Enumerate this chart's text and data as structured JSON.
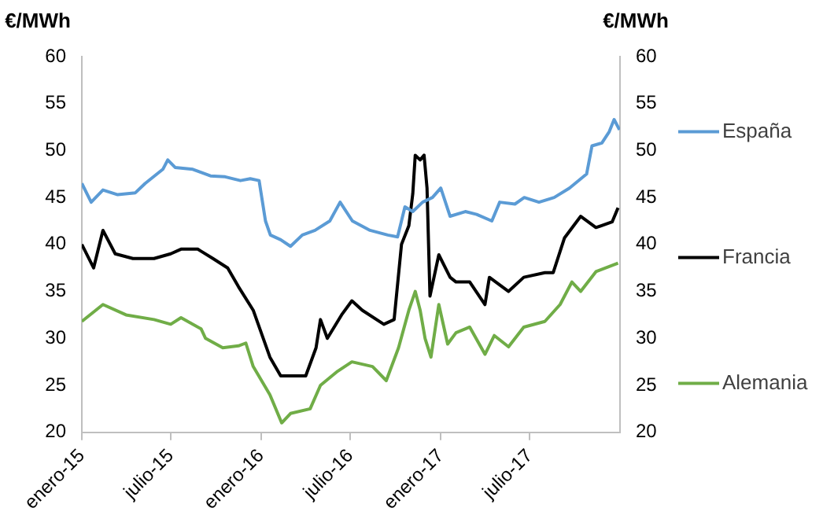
{
  "chart_data": {
    "type": "line",
    "ylabel": "€/MWh",
    "y2label": "€/MWh",
    "xlim": [
      "2015-01-01",
      "2018-01-01"
    ],
    "xticks": [
      {
        "value": "2015-01",
        "label": "enero-15"
      },
      {
        "value": "2015-07",
        "label": "julio-15"
      },
      {
        "value": "2016-01",
        "label": "enero-16"
      },
      {
        "value": "2016-07",
        "label": "julio-16"
      },
      {
        "value": "2017-01",
        "label": "enero-17"
      },
      {
        "value": "2017-07",
        "label": "julio-17"
      }
    ],
    "ylim": [
      20,
      60
    ],
    "yticks": [
      20,
      25,
      30,
      35,
      40,
      45,
      50,
      55,
      60
    ],
    "y2lim": [
      20,
      60
    ],
    "y2ticks": [
      20,
      25,
      30,
      35,
      40,
      45,
      50,
      55,
      60
    ],
    "grid": false,
    "legend": "right",
    "marker": "none",
    "line_style": "solid",
    "series": [
      {
        "name": "España",
        "color": "#5b9bd5",
        "x": [
          "2015-01-01",
          "2015-01-20",
          "2015-02-13",
          "2015-03-15",
          "2015-04-20",
          "2015-05-10",
          "2015-06-15",
          "2015-06-25",
          "2015-07-10",
          "2015-08-15",
          "2015-09-20",
          "2015-10-20",
          "2015-11-20",
          "2015-12-10",
          "2015-12-28",
          "2016-01-10",
          "2016-01-20",
          "2016-02-10",
          "2016-03-01",
          "2016-03-25",
          "2016-04-20",
          "2016-05-20",
          "2016-06-10",
          "2016-07-05",
          "2016-08-10",
          "2016-09-15",
          "2016-10-05",
          "2016-10-20",
          "2016-11-05",
          "2016-11-25",
          "2016-12-15",
          "2017-01-01",
          "2017-01-20",
          "2017-02-20",
          "2017-03-15",
          "2017-04-15",
          "2017-05-01",
          "2017-06-01",
          "2017-06-20",
          "2017-07-20",
          "2017-08-20",
          "2017-09-20",
          "2017-10-25",
          "2017-11-05",
          "2017-11-25",
          "2017-12-10",
          "2017-12-20",
          "2017-12-31"
        ],
        "values": [
          46.5,
          44.5,
          45.8,
          45.3,
          45.5,
          46.5,
          48,
          49,
          48.2,
          48,
          47.3,
          47.2,
          46.8,
          47,
          46.8,
          42.5,
          41,
          40.5,
          39.8,
          41,
          41.5,
          42.5,
          44.5,
          42.5,
          41.5,
          41,
          40.8,
          44,
          43.5,
          44.5,
          45,
          46,
          43,
          43.5,
          43.2,
          42.5,
          44.5,
          44.3,
          45,
          44.5,
          45,
          46,
          47.5,
          50.5,
          50.8,
          52,
          53.3,
          52.2
        ]
      },
      {
        "name": "Francia",
        "color": "#000000",
        "x": [
          "2015-01-01",
          "2015-01-25",
          "2015-02-13",
          "2015-03-10",
          "2015-04-15",
          "2015-05-28",
          "2015-07-01",
          "2015-07-22",
          "2015-08-25",
          "2015-09-25",
          "2015-10-25",
          "2015-11-16",
          "2015-12-16",
          "2016-01-19",
          "2016-02-10",
          "2016-03-15",
          "2016-04-01",
          "2016-04-22",
          "2016-05-01",
          "2016-05-15",
          "2016-06-13",
          "2016-07-04",
          "2016-07-25",
          "2016-09-07",
          "2016-09-28",
          "2016-10-13",
          "2016-10-28",
          "2016-11-05",
          "2016-11-10",
          "2016-11-20",
          "2016-11-28",
          "2016-12-04",
          "2016-12-10",
          "2016-12-28",
          "2017-01-20",
          "2017-02-01",
          "2017-03-01",
          "2017-04-01",
          "2017-04-10",
          "2017-05-19",
          "2017-06-19",
          "2017-08-01",
          "2017-08-18",
          "2017-09-10",
          "2017-10-13",
          "2017-11-13",
          "2017-12-16",
          "2017-12-28"
        ],
        "values": [
          40,
          37.5,
          41.5,
          39,
          38.5,
          38.5,
          39,
          39.5,
          39.5,
          38.5,
          37.5,
          35.5,
          33,
          28,
          26,
          26,
          26,
          29,
          32,
          30,
          32.5,
          34,
          33,
          31.5,
          32,
          40,
          42,
          45.4,
          49.5,
          49,
          49.5,
          46,
          34.5,
          38.9,
          36.5,
          36,
          36,
          33.6,
          36.5,
          35,
          36.5,
          37,
          37,
          40.7,
          43,
          41.8,
          42.4,
          43.9
        ]
      },
      {
        "name": "Alemania",
        "color": "#70ad47",
        "x": [
          "2015-01-01",
          "2015-02-13",
          "2015-04-01",
          "2015-05-28",
          "2015-07-01",
          "2015-07-22",
          "2015-09-01",
          "2015-09-10",
          "2015-10-15",
          "2015-11-16",
          "2015-12-01",
          "2015-12-16",
          "2016-01-19",
          "2016-02-12",
          "2016-03-01",
          "2016-04-10",
          "2016-05-01",
          "2016-06-05",
          "2016-07-04",
          "2016-08-15",
          "2016-09-12",
          "2016-10-07",
          "2016-10-28",
          "2016-11-10",
          "2016-11-20",
          "2016-11-30",
          "2016-12-12",
          "2016-12-28",
          "2017-01-15",
          "2017-02-01",
          "2017-03-01",
          "2017-04-01",
          "2017-04-20",
          "2017-05-19",
          "2017-06-19",
          "2017-08-01",
          "2017-09-01",
          "2017-09-25",
          "2017-10-13",
          "2017-11-13",
          "2017-12-28"
        ],
        "values": [
          31.8,
          33.6,
          32.5,
          32,
          31.5,
          32.2,
          31,
          30,
          29,
          29.2,
          29.5,
          27,
          24,
          21,
          22,
          22.5,
          25,
          26.5,
          27.5,
          27,
          25.5,
          29,
          33,
          35,
          33,
          30,
          28,
          33.6,
          29.4,
          30.6,
          31.2,
          28.3,
          30.3,
          29.1,
          31.2,
          31.8,
          33.6,
          36,
          35,
          37.1,
          38
        ]
      }
    ]
  }
}
